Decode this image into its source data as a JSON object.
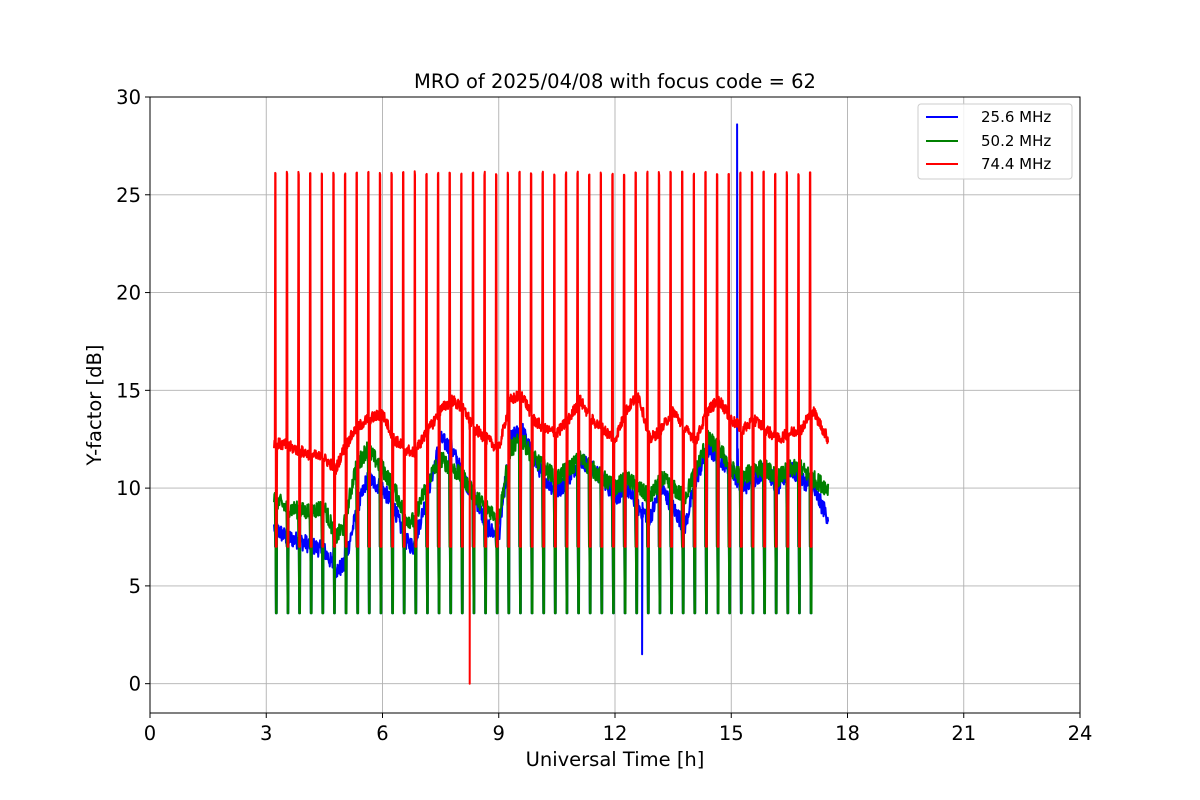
{
  "chart_data": {
    "type": "line",
    "title": "MRO of 2025/04/08 with focus code = 62",
    "xlabel": "Universal Time [h]",
    "ylabel": "Y-factor [dB]",
    "xlim": [
      0,
      24
    ],
    "ylim": [
      -1.5,
      30
    ],
    "xticks": [
      0,
      3,
      6,
      9,
      12,
      15,
      18,
      21,
      24
    ],
    "yticks": [
      0,
      5,
      10,
      15,
      20,
      25,
      30
    ],
    "grid": true,
    "legend_position": "top-right",
    "calibration_pulses": {
      "interval_h": 0.3,
      "first_h": 3.22,
      "last_h": 17.25,
      "duration_h": 0.05
    },
    "series": [
      {
        "name": "25.6 MHz",
        "color": "#0000ff",
        "pulse_low": 3.6,
        "pulse_high": 7.0,
        "baseline": {
          "x": [
            3.2,
            3.5,
            4.0,
            4.5,
            4.8,
            5.0,
            5.3,
            5.6,
            6.0,
            6.3,
            6.6,
            6.8,
            7.2,
            7.5,
            7.8,
            8.1,
            8.4,
            8.7,
            9.0,
            9.3,
            9.6,
            9.9,
            10.2,
            10.5,
            10.8,
            11.1,
            11.4,
            11.7,
            12.0,
            12.3,
            12.6,
            12.9,
            13.2,
            13.5,
            13.8,
            14.1,
            14.4,
            14.7,
            15.0,
            15.3,
            15.6,
            15.9,
            16.2,
            16.5,
            16.8,
            17.1,
            17.5
          ],
          "y": [
            8.0,
            7.5,
            7.2,
            6.8,
            5.8,
            6.0,
            8.5,
            10.5,
            10.0,
            9.0,
            7.3,
            7.0,
            10.0,
            12.5,
            12.0,
            10.5,
            9.5,
            8.0,
            7.5,
            12.5,
            13.0,
            11.5,
            10.5,
            9.8,
            10.5,
            11.5,
            11.0,
            10.5,
            9.5,
            10.0,
            9.0,
            8.5,
            10.0,
            9.0,
            8.0,
            10.5,
            12.0,
            11.5,
            11.0,
            10.0,
            10.5,
            11.0,
            10.0,
            11.0,
            10.5,
            10.0,
            8.5
          ]
        }
      },
      {
        "name": "50.2 MHz",
        "color": "#008000",
        "pulse_low": 3.6,
        "pulse_high": 7.0,
        "baseline": {
          "x": [
            3.2,
            3.5,
            4.0,
            4.5,
            4.8,
            5.0,
            5.3,
            5.6,
            6.0,
            6.3,
            6.6,
            6.8,
            7.2,
            7.5,
            7.8,
            8.1,
            8.4,
            8.7,
            9.0,
            9.3,
            9.6,
            9.9,
            10.2,
            10.5,
            10.8,
            11.1,
            11.4,
            11.7,
            12.0,
            12.3,
            12.6,
            12.9,
            13.2,
            13.5,
            13.8,
            14.1,
            14.4,
            14.7,
            15.0,
            15.3,
            15.6,
            15.9,
            16.2,
            16.5,
            16.8,
            17.1,
            17.5
          ],
          "y": [
            9.5,
            9.0,
            8.8,
            9.0,
            7.5,
            8.0,
            11.0,
            12.0,
            11.0,
            10.0,
            8.5,
            8.3,
            10.5,
            11.5,
            11.0,
            10.5,
            9.5,
            9.0,
            8.5,
            12.0,
            12.5,
            11.5,
            11.0,
            10.5,
            11.0,
            11.5,
            11.0,
            10.5,
            10.0,
            10.5,
            10.0,
            9.5,
            10.5,
            10.0,
            9.5,
            11.0,
            12.5,
            12.0,
            11.0,
            10.5,
            11.0,
            11.0,
            10.5,
            11.0,
            11.0,
            10.5,
            10.0
          ]
        }
      },
      {
        "name": "74.4 MHz",
        "color": "#ff0000",
        "pulse_low": 7.0,
        "pulse_high": 26.1,
        "baseline": {
          "x": [
            3.2,
            3.5,
            4.0,
            4.5,
            4.8,
            5.0,
            5.3,
            5.6,
            6.0,
            6.3,
            6.6,
            6.8,
            7.2,
            7.5,
            7.8,
            8.1,
            8.4,
            8.7,
            9.0,
            9.3,
            9.6,
            9.9,
            10.2,
            10.5,
            10.8,
            11.1,
            11.4,
            11.7,
            12.0,
            12.3,
            12.6,
            12.9,
            13.2,
            13.5,
            13.8,
            14.1,
            14.4,
            14.7,
            15.0,
            15.3,
            15.6,
            15.9,
            16.2,
            16.5,
            16.8,
            17.1,
            17.5
          ],
          "y": [
            12.3,
            12.2,
            11.8,
            11.5,
            11.0,
            12.0,
            13.0,
            13.5,
            13.8,
            12.5,
            12.0,
            11.8,
            13.0,
            14.0,
            14.5,
            14.0,
            13.0,
            12.5,
            12.0,
            14.5,
            14.8,
            13.5,
            13.0,
            12.8,
            13.5,
            14.5,
            13.5,
            13.0,
            12.5,
            14.0,
            14.8,
            12.5,
            13.0,
            14.0,
            13.0,
            12.5,
            14.0,
            14.5,
            13.5,
            13.0,
            13.5,
            13.0,
            12.5,
            12.8,
            13.0,
            14.0,
            12.5
          ]
        }
      }
    ],
    "features": {
      "red_dropout": {
        "x": 8.25,
        "y": 0
      },
      "blue_spike": {
        "x": 15.15,
        "y": 28.6
      },
      "blue_dip": {
        "x": 12.7,
        "y": 1.5
      }
    }
  }
}
